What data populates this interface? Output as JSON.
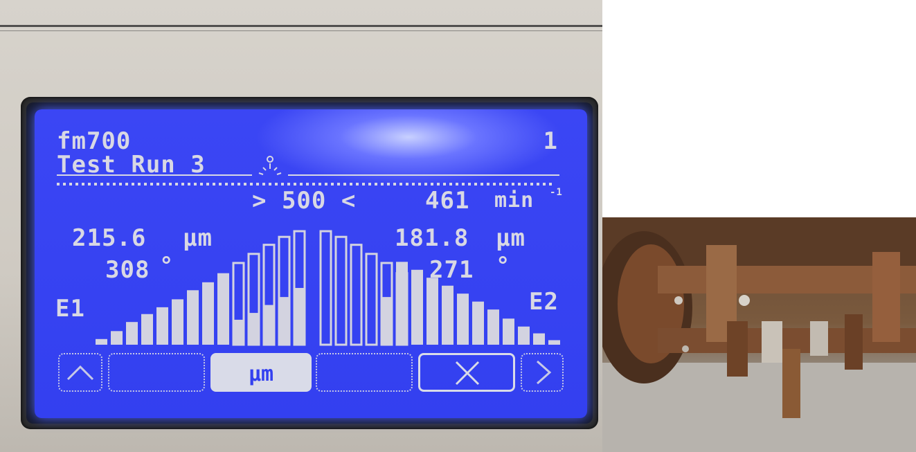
{
  "display": {
    "device_name": "fm700",
    "page_number": "1",
    "run_name": "Test Run 3",
    "target_speed": "> 500 <",
    "actual_speed": "461",
    "speed_unit": "min",
    "speed_unit_exponent": "-1",
    "sensor_left": {
      "label": "E1",
      "value": "215.6",
      "unit": "µm",
      "angle": "308",
      "angle_unit": "°"
    },
    "sensor_right": {
      "label": "E2",
      "value": "181.8",
      "unit": "µm",
      "angle": "271",
      "angle_unit": "°"
    },
    "bar_levels_left": [
      0.05,
      0.12,
      0.2,
      0.27,
      0.33,
      0.4,
      0.48,
      0.55,
      0.63,
      0.22,
      0.28,
      0.35,
      0.42,
      0.5
    ],
    "bar_outline_left": [
      0,
      0,
      0,
      0,
      0,
      0,
      0,
      0,
      0,
      0.72,
      0.8,
      0.88,
      0.95,
      1.0
    ],
    "bar_levels_right": [
      0,
      0,
      0,
      0,
      0.42,
      0.73,
      0.66,
      0.59,
      0.52,
      0.45,
      0.38,
      0.31,
      0.23,
      0.16,
      0.1,
      0.04
    ],
    "bar_outline_right": [
      1.0,
      0.95,
      0.88,
      0.8,
      0.72,
      0.63,
      0,
      0,
      0,
      0,
      0,
      0,
      0,
      0,
      0,
      0
    ],
    "buttons": {
      "up": "up",
      "unit": "µm",
      "close": "close",
      "next": "next"
    },
    "colors": {
      "lcd_background": "#3340f0",
      "lcd_text": "#d8d8e4",
      "bar_fill": "#d3d3e0"
    }
  },
  "photo_right": {
    "subject": "rusty-rotor-flails"
  }
}
